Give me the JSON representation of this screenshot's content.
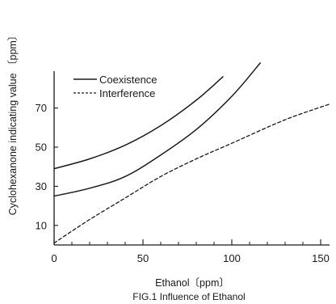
{
  "chart_data": {
    "type": "line",
    "caption": "FIG.1 Influence of Ethanol",
    "xlabel": "Ethanol〔ppm〕",
    "ylabel": "Cyclohexanone indicating value 〔ppm〕",
    "xlim": [
      0,
      155
    ],
    "ylim": [
      0,
      110
    ],
    "x_ticks": [
      0,
      50,
      100,
      150
    ],
    "x_minor_tick_step": 10,
    "y_ticks": [
      10,
      30,
      50,
      70
    ],
    "grid": false,
    "legend_position": "top-left",
    "series": [
      {
        "name": "Coexistence",
        "line_style": "solid",
        "points": [
          [
            0,
            39
          ],
          [
            20,
            44
          ],
          [
            40,
            51
          ],
          [
            60,
            61
          ],
          [
            80,
            74
          ],
          [
            95,
            86
          ]
        ]
      },
      {
        "name": "",
        "line_style": "solid",
        "points": [
          [
            0,
            25
          ],
          [
            20,
            29
          ],
          [
            40,
            35
          ],
          [
            60,
            46
          ],
          [
            80,
            59
          ],
          [
            100,
            76
          ],
          [
            116,
            93
          ]
        ]
      },
      {
        "name": "Interference",
        "line_style": "dashed",
        "points": [
          [
            0,
            1
          ],
          [
            20,
            13
          ],
          [
            40,
            24
          ],
          [
            60,
            35
          ],
          [
            80,
            44
          ],
          [
            100,
            52
          ],
          [
            130,
            64
          ],
          [
            155,
            72
          ]
        ]
      }
    ]
  }
}
